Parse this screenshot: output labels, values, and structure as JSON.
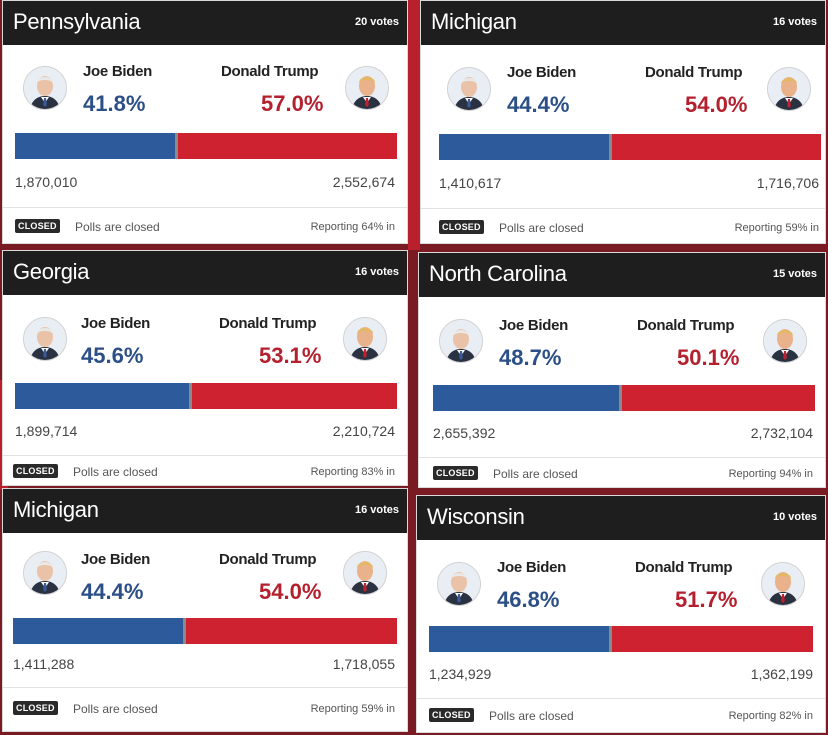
{
  "colors": {
    "dem": "#2b4f86",
    "rep": "#b5202e",
    "dem_bar": "#2d5a9b",
    "rep_bar": "#cf2230",
    "header": "#1e1e1e"
  },
  "cards": [
    {
      "state": "Pennsylvania",
      "votes": "20 votes",
      "dem_name": "Joe Biden",
      "dem_pct": "41.8%",
      "rep_name": "Donald Trump",
      "rep_pct": "57.0%",
      "dem_share": 0.418,
      "dem_total": "1,870,010",
      "rep_total": "2,552,674",
      "status": "CLOSED",
      "polls": "Polls are closed",
      "reporting": "Reporting 64% in",
      "dem_avatar_icon": "biden-portrait-icon",
      "rep_avatar_icon": "trump-portrait-icon"
    },
    {
      "state": "Michigan",
      "votes": "16 votes",
      "dem_name": "Joe Biden",
      "dem_pct": "44.4%",
      "rep_name": "Donald Trump",
      "rep_pct": "54.0%",
      "dem_share": 0.444,
      "dem_total": "1,410,617",
      "rep_total": "1,716,706",
      "status": "CLOSED",
      "polls": "Polls are closed",
      "reporting": "Reporting 59% in",
      "dem_avatar_icon": "biden-portrait-icon",
      "rep_avatar_icon": "trump-portrait-icon"
    },
    {
      "state": "Georgia",
      "votes": "16 votes",
      "dem_name": "Joe Biden",
      "dem_pct": "45.6%",
      "rep_name": "Donald Trump",
      "rep_pct": "53.1%",
      "dem_share": 0.456,
      "dem_total": "1,899,714",
      "rep_total": "2,210,724",
      "status": "CLOSED",
      "polls": "Polls are closed",
      "reporting": "Reporting 83% in",
      "dem_avatar_icon": "biden-portrait-icon",
      "rep_avatar_icon": "trump-portrait-icon"
    },
    {
      "state": "North Carolina",
      "votes": "15 votes",
      "dem_name": "Joe Biden",
      "dem_pct": "48.7%",
      "rep_name": "Donald Trump",
      "rep_pct": "50.1%",
      "dem_share": 0.487,
      "dem_total": "2,655,392",
      "rep_total": "2,732,104",
      "status": "CLOSED",
      "polls": "Polls are closed",
      "reporting": "Reporting 94% in",
      "dem_avatar_icon": "biden-portrait-icon",
      "rep_avatar_icon": "trump-portrait-icon"
    },
    {
      "state": "Michigan",
      "votes": "16 votes",
      "dem_name": "Joe Biden",
      "dem_pct": "44.4%",
      "rep_name": "Donald Trump",
      "rep_pct": "54.0%",
      "dem_share": 0.444,
      "dem_total": "1,411,288",
      "rep_total": "1,718,055",
      "status": "CLOSED",
      "polls": "Polls are closed",
      "reporting": "Reporting 59% in",
      "dem_avatar_icon": "biden-portrait-icon",
      "rep_avatar_icon": "trump-portrait-icon"
    },
    {
      "state": "Wisconsin",
      "votes": "10 votes",
      "dem_name": "Joe Biden",
      "dem_pct": "46.8%",
      "rep_name": "Donald Trump",
      "rep_pct": "51.7%",
      "dem_share": 0.468,
      "dem_total": "1,234,929",
      "rep_total": "1,362,199",
      "status": "CLOSED",
      "polls": "Polls are closed",
      "reporting": "Reporting 82% in",
      "dem_avatar_icon": "biden-portrait-icon",
      "rep_avatar_icon": "trump-portrait-icon"
    }
  ]
}
